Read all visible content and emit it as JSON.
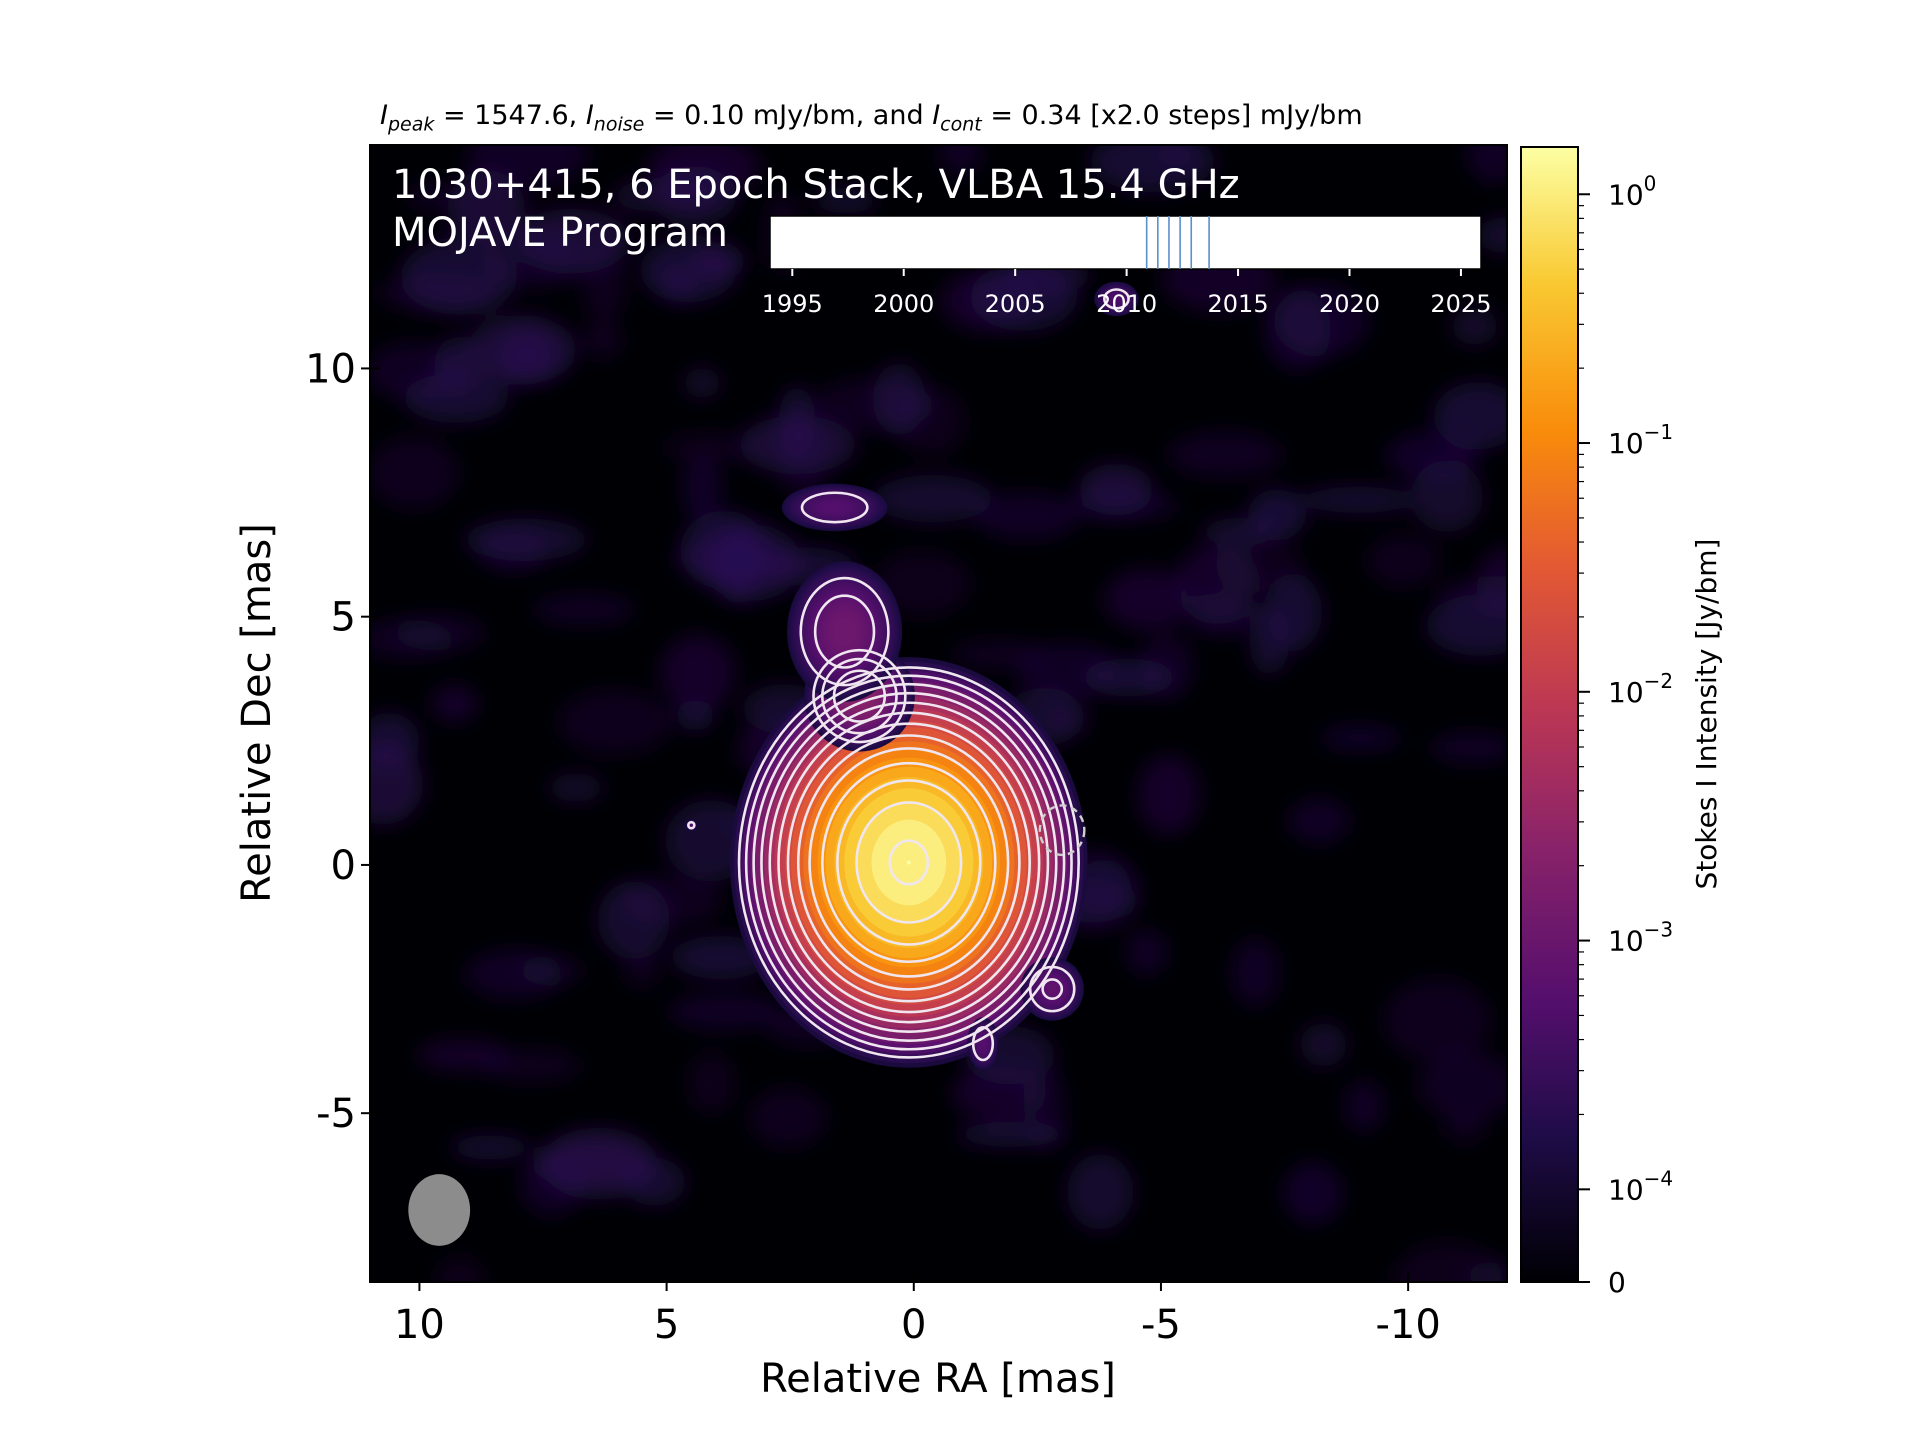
{
  "stats": {
    "peak_symbol": "I",
    "peak_sub": "peak",
    "peak_value": "= 1547.6,",
    "noise_symbol": "I",
    "noise_sub": "noise",
    "noise_value": "= 0.10 mJy/bm, and",
    "cont_symbol": "I",
    "cont_sub": "cont",
    "cont_value": "= 0.34 [x2.0 steps] mJy/bm"
  },
  "chart_data": {
    "type": "heatmap",
    "title_line1": "1030+415, 6 Epoch Stack, VLBA 15.4 GHz",
    "title_line2": "MOJAVE Program",
    "xlabel": "Relative RA [mas]",
    "ylabel": "Relative Dec [mas]",
    "xlim": [
      11,
      -12
    ],
    "ylim": [
      -8.4,
      14.5
    ],
    "x_ticks": [
      10,
      5,
      0,
      -5,
      -10
    ],
    "x_tick_labels": [
      "10",
      "5",
      "0",
      "-5",
      "-10"
    ],
    "y_ticks": [
      10,
      5,
      0,
      -5
    ],
    "y_tick_labels": [
      "10",
      "5",
      "0",
      "-5"
    ],
    "colorbar": {
      "label": "Stokes I Intensity [Jy/bm]",
      "scale": "log",
      "colormap": "inferno",
      "tick_labels": [
        {
          "base": "10",
          "exp": "0",
          "value": 1
        },
        {
          "base": "10",
          "exp": "−1",
          "value": 0.1
        },
        {
          "base": "10",
          "exp": "−2",
          "value": 0.01
        },
        {
          "base": "10",
          "exp": "−3",
          "value": 0.001
        },
        {
          "base": "10",
          "exp": "−4",
          "value": 0.0001
        },
        {
          "base": "0",
          "exp": "",
          "value": 0
        }
      ]
    },
    "contours": {
      "base_mjy_per_beam": 0.34,
      "step_factor": 2.0,
      "core_levels": 13,
      "line_color": "#f0e6f0"
    },
    "beam": {
      "ra": 9.6,
      "dec": -6.95,
      "major_mas": 1.45,
      "minor_mas": 1.25,
      "pa_deg": 0,
      "color": "#8c8c8c"
    },
    "epoch_timeline": {
      "tick_labels": [
        "1995",
        "2000",
        "2005",
        "2010",
        "2015",
        "2020",
        "2025"
      ],
      "xlim": [
        1994.0,
        2025.9
      ],
      "epochs": [
        2010.9,
        2011.4,
        2011.9,
        2012.4,
        2012.9,
        2013.7
      ],
      "epoch_color": "#5b8fc9"
    },
    "components": [
      {
        "ra": 0.1,
        "dec": 0.05,
        "peak_jy": 1.5476,
        "sx": 1.35,
        "sy": 1.55
      },
      {
        "ra": 1.1,
        "dec": 3.4,
        "peak_jy": 0.0025,
        "sx": 0.75,
        "sy": 0.75
      },
      {
        "ra": 1.4,
        "dec": 4.7,
        "peak_jy": 0.0012,
        "sx": 0.9,
        "sy": 1.1
      },
      {
        "ra": 1.6,
        "dec": 7.2,
        "peak_jy": 0.0006,
        "sx": 1.0,
        "sy": 0.45
      },
      {
        "ra": -2.8,
        "dec": -2.5,
        "peak_jy": 0.0008,
        "sx": 0.55,
        "sy": 0.55
      },
      {
        "ra": -1.4,
        "dec": -3.6,
        "peak_jy": 0.0006,
        "sx": 0.3,
        "sy": 0.5
      },
      {
        "ra": -4.1,
        "dec": 11.4,
        "peak_jy": 0.0005,
        "sx": 0.45,
        "sy": 0.35
      },
      {
        "ra": 4.5,
        "dec": 0.8,
        "peak_jy": 0.00045,
        "sx": 0.12,
        "sy": 0.12
      }
    ]
  }
}
